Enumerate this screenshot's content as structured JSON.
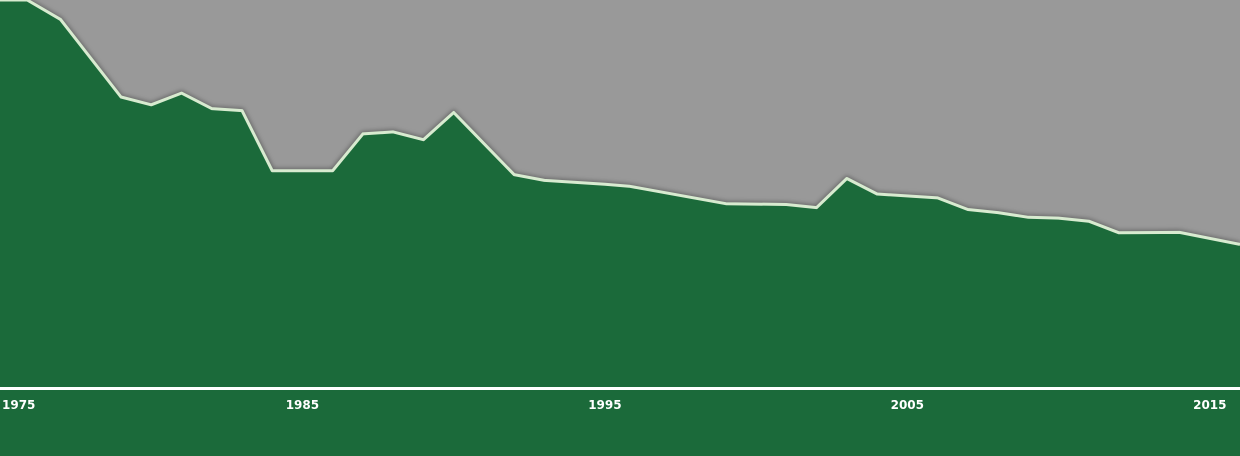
{
  "chart_data": {
    "type": "area",
    "title": "",
    "xlabel": "",
    "ylabel": "",
    "x": [
      1975.9,
      1977,
      1979,
      1980,
      1981,
      1982,
      1983,
      1984,
      1986,
      1987,
      1988,
      1989,
      1990,
      1992,
      1993,
      1995,
      1995.8,
      1999,
      2001,
      2002,
      2003,
      2004,
      2006,
      2007,
      2008,
      2009,
      2010,
      2011,
      2012,
      2014,
      2016
    ],
    "values": [
      100,
      95,
      75,
      73,
      76,
      72,
      71.5,
      56,
      56,
      65.5,
      66,
      64,
      71,
      55,
      53.5,
      52.5,
      52,
      47.5,
      47.3,
      46.5,
      54,
      50,
      49,
      46,
      45.2,
      44,
      43.8,
      43,
      40,
      40.1,
      37
    ],
    "xlim": [
      1975,
      2016
    ],
    "ylim": [
      0,
      100
    ],
    "xticks": [
      {
        "value": 1975,
        "label": "1975"
      },
      {
        "value": 1985,
        "label": "1985"
      },
      {
        "value": 1995,
        "label": "1995"
      },
      {
        "value": 2005,
        "label": "2005"
      },
      {
        "value": 2015,
        "label": "2015"
      }
    ],
    "grid": false,
    "legend": "none",
    "colors": {
      "area_fill": "#1b6a3a",
      "upper_region": "#999999",
      "line": "#d8ebd0",
      "baseline": "#ffffff",
      "background": "#1b6a3a"
    }
  }
}
